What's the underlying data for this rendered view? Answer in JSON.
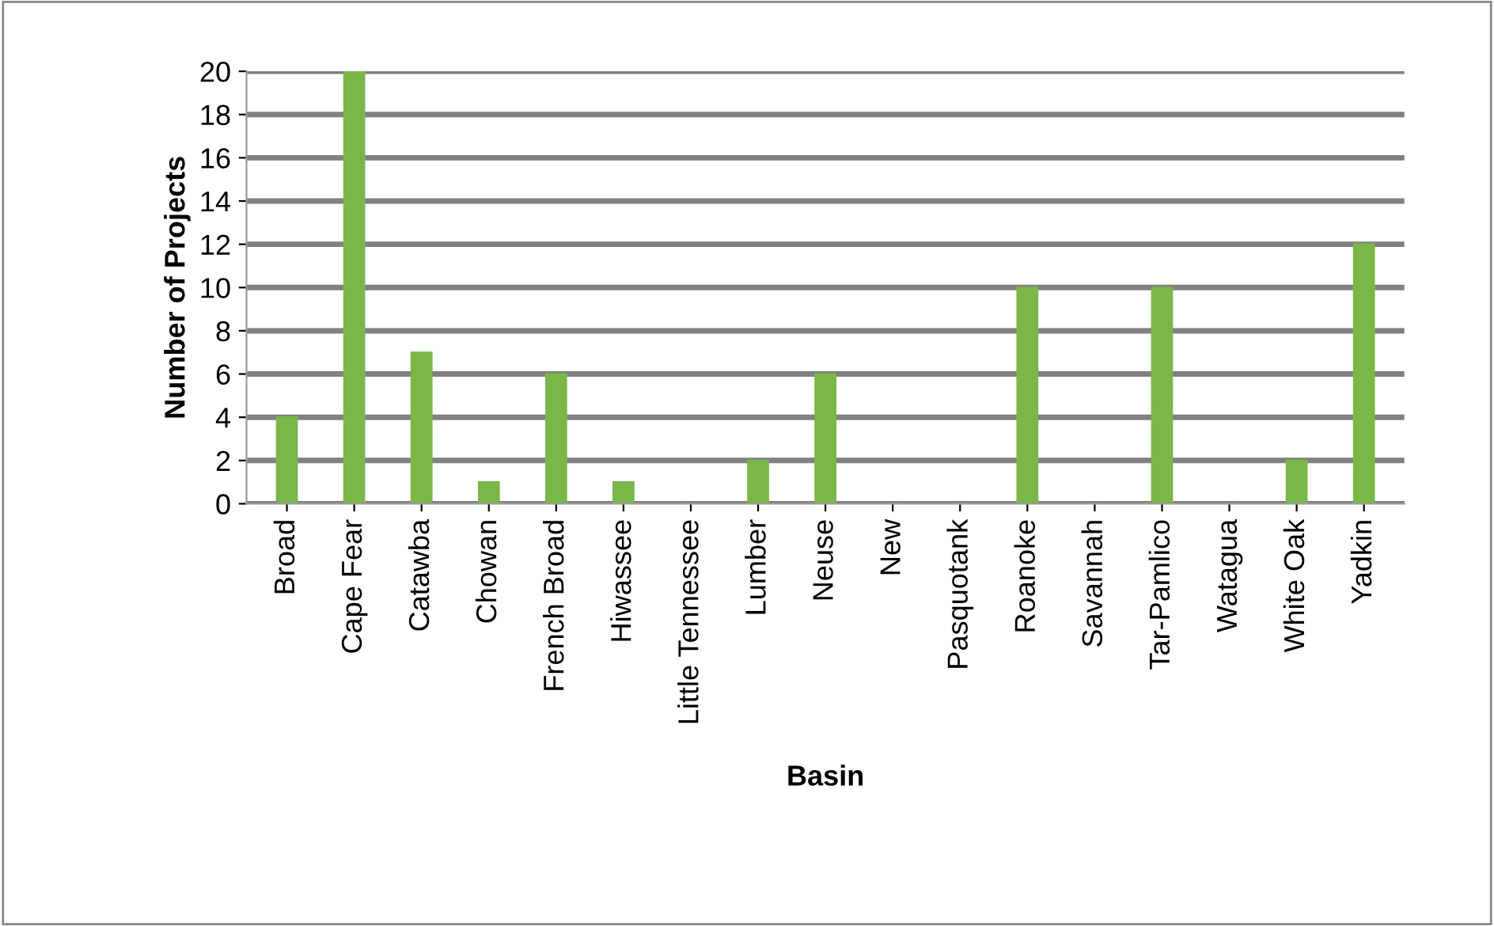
{
  "chart_data": {
    "type": "bar",
    "categories": [
      "Broad",
      "Cape Fear",
      "Catawba",
      "Chowan",
      "French Broad",
      "Hiwassee",
      "Little Tennessee",
      "Lumber",
      "Neuse",
      "New",
      "Pasquotank",
      "Roanoke",
      "Savannah",
      "Tar-Pamlico",
      "Watagua",
      "White Oak",
      "Yadkin"
    ],
    "values": [
      4,
      20,
      7,
      1,
      6,
      1,
      0,
      2,
      6,
      0,
      0,
      10,
      0,
      10,
      0,
      2,
      12
    ],
    "color": "#7ab648",
    "xlabel": "Basin",
    "ylabel": "Number of Projects",
    "ylim": [
      0,
      20
    ],
    "yticks": [
      0,
      2,
      4,
      6,
      8,
      10,
      12,
      14,
      16,
      18,
      20
    ],
    "grid": "y"
  }
}
